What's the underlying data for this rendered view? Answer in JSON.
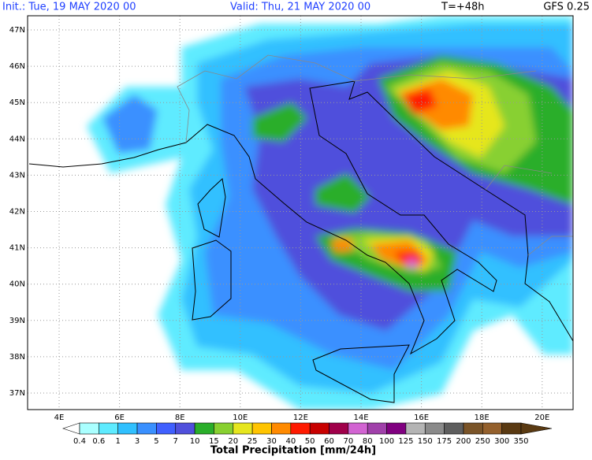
{
  "header": {
    "init": "Init.: Tue, 19 MAY 2020  00",
    "valid": "Valid: Thu, 21 MAY 2020  00",
    "lead": "T=+48h",
    "model": "GFS 0.25"
  },
  "map": {
    "lat_labels": [
      "47N",
      "46N",
      "45N",
      "44N",
      "43N",
      "42N",
      "41N",
      "40N",
      "39N",
      "38N",
      "37N"
    ],
    "lon_labels": [
      "4E",
      "6E",
      "8E",
      "10E",
      "12E",
      "14E",
      "16E",
      "18E",
      "20E"
    ]
  },
  "legend": {
    "title": "Total Precipitation [mm/24h]",
    "labels": [
      "0.4",
      "0.6",
      "1",
      "3",
      "5",
      "7",
      "10",
      "15",
      "20",
      "25",
      "30",
      "40",
      "50",
      "60",
      "70",
      "80",
      "100",
      "125",
      "150",
      "175",
      "200",
      "250",
      "300",
      "350"
    ],
    "colors": [
      "#aaffff",
      "#5eebff",
      "#30c0ff",
      "#3a90ff",
      "#4060ff",
      "#5050dc",
      "#2aae2a",
      "#88d030",
      "#e6e61e",
      "#ffc400",
      "#ff8a00",
      "#ff1a00",
      "#c80000",
      "#a0004a",
      "#d264d2",
      "#a040aa",
      "#800080",
      "#b4b4b4",
      "#8a8a8a",
      "#5e5e5e",
      "#7a5428",
      "#94602c",
      "#5a3a12"
    ],
    "low_color": "#ffffff",
    "high_color": "#5a3a12"
  }
}
